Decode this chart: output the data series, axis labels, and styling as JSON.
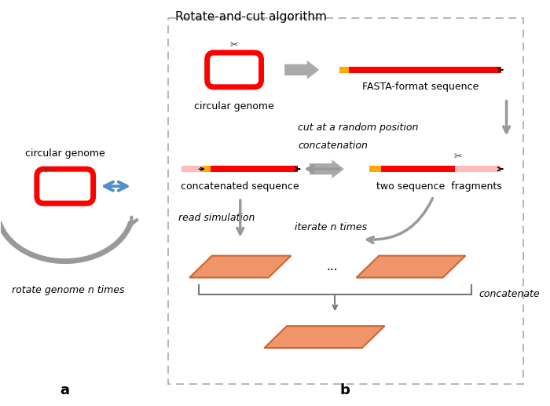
{
  "title": "Rotate-and-cut algorithm",
  "bg_color": "#ffffff",
  "label_a": "a",
  "label_b": "b",
  "left_label_circ": "circular genome",
  "left_label_rotate": "rotate genome n times",
  "right_label_circ": "circular genome",
  "right_label_fasta": "FASTA-format sequence",
  "right_label_concat": "concatenated sequence",
  "right_label_two": "two sequence  fragments",
  "arrow_cut": "cut at a random position",
  "arrow_conc": "concatenation",
  "arrow_read_sim": "read simulation",
  "arrow_iterate": "iterate n times",
  "arrow_concatenate": "concatenate",
  "genome_rect_color": "#ff0000",
  "seq_bar_red": "#ff0000",
  "seq_bar_yellow": "#ffaa00",
  "seq_bar_pink": "#ffbbbb",
  "read_set_color": "#f0956a",
  "read_set_edge": "#cc6633",
  "gray_arrow": "#999999",
  "gray_arrow_dark": "#888888",
  "blue_arrow": "#4f90c8",
  "text_color": "#000000",
  "italic_color": "#555555"
}
